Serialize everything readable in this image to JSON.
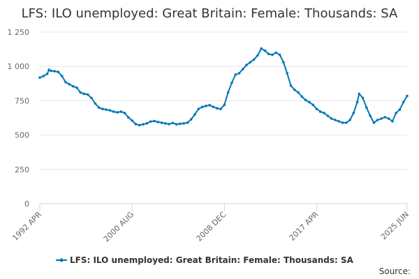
{
  "chart_data": {
    "type": "line",
    "title": "LFS: ILO unemployed: Great Britain: Female: Thousands: SA",
    "xlabel": "",
    "ylabel": "",
    "ylim": [
      0,
      1250
    ],
    "yticks": [
      0,
      250,
      500,
      750,
      1000,
      1250
    ],
    "ytick_labels": [
      "0",
      "250",
      "500",
      "750",
      "1 000",
      "1 250"
    ],
    "x_range": [
      "1992-04",
      "2025-06"
    ],
    "xticks": [
      "1992-04",
      "2000-08",
      "2008-12",
      "2017-04",
      "2025-06"
    ],
    "xtick_labels": [
      "1992 APR",
      "2000 AUG",
      "2008 DEC",
      "2017 APR",
      "2025 JUN"
    ],
    "grid": true,
    "legend_position": "bottom-center",
    "colors": {
      "series": "#0077b6",
      "grid": "#e6e6e6",
      "axis": "#ccd6eb"
    },
    "series": [
      {
        "name": "LFS: ILO unemployed: Great Britain: Female: Thousands: SA",
        "points": [
          [
            "1992-04",
            918
          ],
          [
            "1992-08",
            930
          ],
          [
            "1992-12",
            945
          ],
          [
            "1993-02",
            975
          ],
          [
            "1993-04",
            968
          ],
          [
            "1993-08",
            965
          ],
          [
            "1993-12",
            960
          ],
          [
            "1994-04",
            930
          ],
          [
            "1994-08",
            885
          ],
          [
            "1994-12",
            870
          ],
          [
            "1995-04",
            855
          ],
          [
            "1995-08",
            845
          ],
          [
            "1995-12",
            810
          ],
          [
            "1996-04",
            800
          ],
          [
            "1996-08",
            795
          ],
          [
            "1996-12",
            770
          ],
          [
            "1997-04",
            730
          ],
          [
            "1997-08",
            700
          ],
          [
            "1997-12",
            690
          ],
          [
            "1998-04",
            685
          ],
          [
            "1998-08",
            680
          ],
          [
            "1998-12",
            670
          ],
          [
            "1999-04",
            665
          ],
          [
            "1999-08",
            670
          ],
          [
            "1999-12",
            660
          ],
          [
            "2000-04",
            628
          ],
          [
            "2000-08",
            605
          ],
          [
            "2000-12",
            580
          ],
          [
            "2001-04",
            572
          ],
          [
            "2001-08",
            578
          ],
          [
            "2001-12",
            585
          ],
          [
            "2002-04",
            598
          ],
          [
            "2002-08",
            602
          ],
          [
            "2002-12",
            595
          ],
          [
            "2003-04",
            590
          ],
          [
            "2003-08",
            585
          ],
          [
            "2003-12",
            580
          ],
          [
            "2004-04",
            588
          ],
          [
            "2004-08",
            578
          ],
          [
            "2004-12",
            582
          ],
          [
            "2005-04",
            585
          ],
          [
            "2005-08",
            590
          ],
          [
            "2005-12",
            615
          ],
          [
            "2006-04",
            650
          ],
          [
            "2006-08",
            690
          ],
          [
            "2006-12",
            705
          ],
          [
            "2007-04",
            712
          ],
          [
            "2007-08",
            718
          ],
          [
            "2007-12",
            705
          ],
          [
            "2008-04",
            695
          ],
          [
            "2008-08",
            690
          ],
          [
            "2008-12",
            720
          ],
          [
            "2009-04",
            810
          ],
          [
            "2009-08",
            880
          ],
          [
            "2009-12",
            940
          ],
          [
            "2010-04",
            950
          ],
          [
            "2010-08",
            980
          ],
          [
            "2010-12",
            1010
          ],
          [
            "2011-04",
            1030
          ],
          [
            "2011-08",
            1050
          ],
          [
            "2011-12",
            1080
          ],
          [
            "2012-04",
            1130
          ],
          [
            "2012-08",
            1115
          ],
          [
            "2012-12",
            1090
          ],
          [
            "2013-04",
            1085
          ],
          [
            "2013-08",
            1100
          ],
          [
            "2013-12",
            1085
          ],
          [
            "2014-04",
            1030
          ],
          [
            "2014-08",
            950
          ],
          [
            "2014-12",
            860
          ],
          [
            "2015-04",
            830
          ],
          [
            "2015-08",
            810
          ],
          [
            "2015-12",
            780
          ],
          [
            "2016-04",
            755
          ],
          [
            "2016-08",
            740
          ],
          [
            "2016-12",
            720
          ],
          [
            "2017-04",
            690
          ],
          [
            "2017-08",
            670
          ],
          [
            "2017-12",
            660
          ],
          [
            "2018-04",
            640
          ],
          [
            "2018-08",
            620
          ],
          [
            "2018-12",
            610
          ],
          [
            "2019-04",
            600
          ],
          [
            "2019-08",
            590
          ],
          [
            "2019-12",
            590
          ],
          [
            "2020-04",
            610
          ],
          [
            "2020-08",
            660
          ],
          [
            "2020-12",
            740
          ],
          [
            "2021-02",
            800
          ],
          [
            "2021-06",
            770
          ],
          [
            "2021-10",
            700
          ],
          [
            "2022-02",
            640
          ],
          [
            "2022-06",
            590
          ],
          [
            "2022-10",
            610
          ],
          [
            "2023-02",
            620
          ],
          [
            "2023-06",
            630
          ],
          [
            "2023-10",
            620
          ],
          [
            "2024-02",
            600
          ],
          [
            "2024-06",
            660
          ],
          [
            "2024-10",
            685
          ],
          [
            "2025-02",
            740
          ],
          [
            "2025-06",
            785
          ]
        ]
      }
    ],
    "source_label": "Source:"
  }
}
